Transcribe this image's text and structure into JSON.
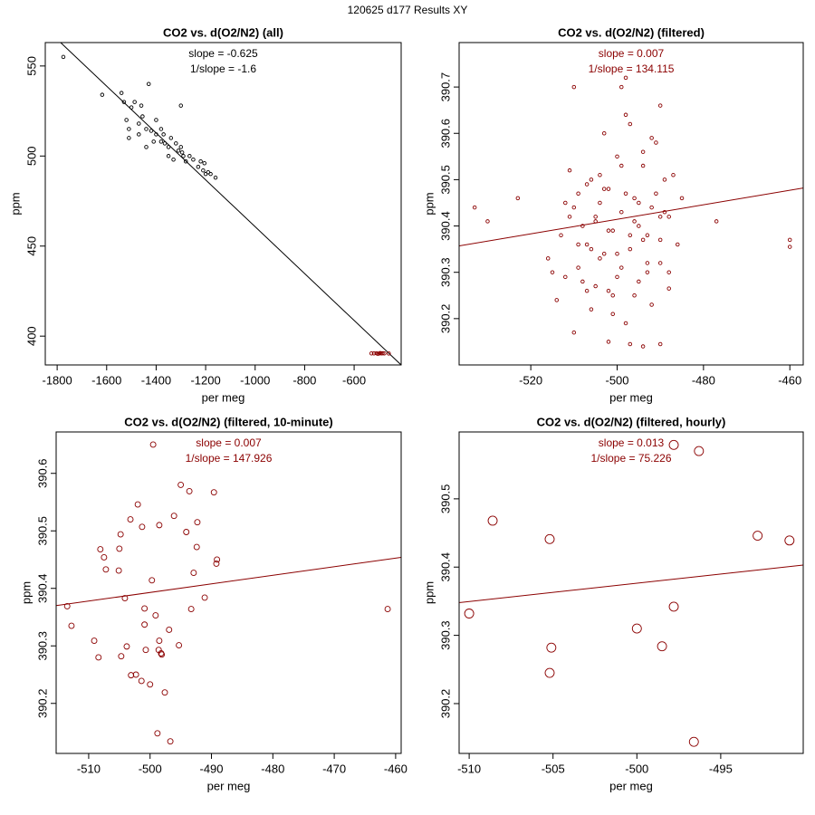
{
  "title": "120625   d177   Results XY",
  "chart_data": [
    {
      "type": "scatter",
      "title": "CO2 vs. d(O2/N2) (all)",
      "xlabel": "per meg",
      "ylabel": "ppm",
      "annotations": [
        "slope = -0.625",
        "1/slope = -1.6"
      ],
      "xlim": [
        -1848,
        -410
      ],
      "ylim": [
        384,
        563
      ],
      "xticks": [
        -1800,
        -1600,
        -1400,
        -1200,
        -1000,
        -800,
        -600
      ],
      "yticks": [
        400,
        450,
        500,
        550
      ],
      "series": [
        {
          "color": "#000000",
          "x": [
            -1775,
            -1618,
            -1540,
            -1530,
            -1500,
            -1487,
            -1430,
            -1520,
            -1510,
            -1455,
            -1470,
            -1400,
            -1380,
            -1370,
            -1420,
            -1440,
            -1410,
            -1380,
            -1365,
            -1350,
            -1340,
            -1320,
            -1310,
            -1300,
            -1290,
            -1300,
            -1330,
            -1280,
            -1265,
            -1250,
            -1230,
            -1210,
            -1200,
            -1190,
            -1180,
            -1160,
            -1205,
            -1220,
            -1440,
            -1510,
            -1470,
            -1350,
            -1295,
            -1460,
            -1400
          ],
          "values": [
            555,
            534,
            535,
            530,
            527,
            530,
            540,
            520,
            515,
            522,
            518,
            520,
            515,
            512,
            514,
            515,
            508,
            508,
            507,
            505,
            510,
            507,
            503,
            505,
            500,
            528,
            498,
            497,
            500,
            498,
            494,
            492,
            490,
            491,
            490,
            488,
            496,
            497,
            505,
            510,
            512,
            500,
            502,
            528,
            512
          ]
        },
        {
          "color": "#8b0000",
          "x": [
            -520,
            -510,
            -500,
            -495,
            -490,
            -485,
            -505,
            -478,
            -460,
            -530
          ],
          "values": [
            390.4,
            390.5,
            390.3,
            390.6,
            390.4,
            390.45,
            390.2,
            390.4,
            390.36,
            390.42
          ]
        }
      ],
      "fit_line": {
        "color": "#000000",
        "x": [
          -1786,
          -410
        ],
        "values": [
          563,
          384
        ]
      }
    },
    {
      "type": "scatter",
      "title": "CO2 vs. d(O2/N2) (filtered)",
      "xlabel": "per meg",
      "ylabel": "ppm",
      "annotations": [
        "slope = 0.007",
        "1/slope = 134.115"
      ],
      "xlim": [
        -536.6,
        -456.9
      ],
      "ylim": [
        390.1,
        390.796
      ],
      "xticks": [
        -520,
        -500,
        -480,
        -460
      ],
      "yticks": [
        390.2,
        390.3,
        390.4,
        390.5,
        390.6,
        390.7
      ],
      "series": [
        {
          "color": "#8b0000",
          "x": [
            -530,
            -533,
            -523,
            -460,
            -460,
            -477,
            -488,
            -498,
            -499,
            -510,
            -490,
            -510,
            -502,
            -497,
            -490,
            -494,
            -515,
            -512,
            -511,
            -509,
            -508,
            -507,
            -506,
            -505,
            -504,
            -503,
            -502,
            -501,
            -500,
            -499,
            -498,
            -497,
            -496,
            -495,
            -494,
            -493,
            -492,
            -491,
            -490,
            -489,
            -487,
            -485,
            -514,
            -513,
            -511,
            -509,
            -507,
            -506,
            -505,
            -504,
            -503,
            -502,
            -501,
            -500,
            -499,
            -498,
            -497,
            -496,
            -495,
            -494,
            -493,
            -492,
            -491,
            -490,
            -489,
            -488,
            -486,
            -516,
            -512,
            -510,
            -508,
            -506,
            -504,
            -502,
            -500,
            -498,
            -496,
            -494,
            -492,
            -490,
            -488,
            -503,
            -501,
            -499,
            -497,
            -495,
            -493,
            -505,
            -507,
            -509
          ],
          "values": [
            390.41,
            390.44,
            390.46,
            390.37,
            390.355,
            390.41,
            390.265,
            390.72,
            390.7,
            390.7,
            390.66,
            390.17,
            390.15,
            390.145,
            390.145,
            390.14,
            390.3,
            390.45,
            390.52,
            390.47,
            390.28,
            390.36,
            390.5,
            390.42,
            390.33,
            390.6,
            390.26,
            390.39,
            390.55,
            390.31,
            390.47,
            390.62,
            390.25,
            390.4,
            390.53,
            390.3,
            390.44,
            390.58,
            390.37,
            390.43,
            390.51,
            390.46,
            390.24,
            390.38,
            390.42,
            390.31,
            390.49,
            390.22,
            390.27,
            390.45,
            390.34,
            390.48,
            390.21,
            390.29,
            390.43,
            390.64,
            390.35,
            390.41,
            390.28,
            390.56,
            390.38,
            390.23,
            390.47,
            390.32,
            390.5,
            390.42,
            390.36,
            390.33,
            390.29,
            390.44,
            390.4,
            390.35,
            390.51,
            390.39,
            390.34,
            390.19,
            390.46,
            390.37,
            390.59,
            390.42,
            390.3,
            390.48,
            390.25,
            390.53,
            390.38,
            390.45,
            390.32,
            390.41,
            390.26,
            390.36
          ]
        }
      ],
      "fit_line": {
        "color": "#8b0000",
        "x": [
          -536.6,
          -456.9
        ],
        "values": [
          390.357,
          390.482
        ]
      }
    },
    {
      "type": "scatter",
      "title": "CO2 vs. d(O2/N2) (filtered, 10-minute)",
      "xlabel": "per meg",
      "ylabel": "ppm",
      "annotations": [
        "slope = 0.007",
        "1/slope = 147.926"
      ],
      "xlim": [
        -515.3,
        -459.1
      ],
      "ylim": [
        390.113,
        390.672
      ],
      "xticks": [
        -510,
        -500,
        -490,
        -480,
        -470,
        -460
      ],
      "yticks": [
        390.2,
        390.3,
        390.4,
        390.5,
        390.6
      ],
      "series": [
        {
          "color": "#8b0000",
          "x": [
            -499.5,
            -495.0,
            -489.6,
            -493.6,
            -496.1,
            -502.0,
            -503.2,
            -498.5,
            -501.3,
            -492.3,
            -494.1,
            -504.8,
            -508.1,
            -505.0,
            -492.4,
            -507.5,
            -492.9,
            -489.1,
            -489.2,
            -505.1,
            -499.7,
            -507.2,
            -513.5,
            -512.8,
            -504.1,
            -500.9,
            -491.1,
            -493.3,
            -500.9,
            -499.1,
            -496.9,
            -498.5,
            -509.1,
            -508.4,
            -503.8,
            -504.7,
            -498.6,
            -500.7,
            -495.3,
            -498.2,
            -498.1,
            -503.1,
            -502.3,
            -501.4,
            -500.0,
            -497.6,
            -461.3,
            -498.8,
            -496.7
          ],
          "values": [
            390.65,
            390.58,
            390.567,
            390.569,
            390.526,
            390.546,
            390.52,
            390.51,
            390.507,
            390.515,
            390.498,
            390.494,
            390.468,
            390.469,
            390.472,
            390.454,
            390.427,
            390.45,
            390.443,
            390.431,
            390.414,
            390.433,
            390.369,
            390.335,
            390.383,
            390.365,
            390.384,
            390.364,
            390.337,
            390.353,
            390.328,
            390.309,
            390.309,
            390.28,
            390.299,
            390.282,
            390.293,
            390.293,
            390.301,
            390.287,
            390.285,
            390.249,
            390.25,
            390.239,
            390.233,
            390.219,
            390.364,
            390.148,
            390.134
          ]
        }
      ],
      "fit_line": {
        "color": "#8b0000",
        "x": [
          -515.3,
          -459.1
        ],
        "values": [
          390.37,
          390.454
        ]
      }
    },
    {
      "type": "scatter",
      "title": "CO2 vs. d(O2/N2) (filtered, hourly)",
      "xlabel": "per meg",
      "ylabel": "ppm",
      "annotations": [
        "slope = 0.013",
        "1/slope = 75.226"
      ],
      "xlim": [
        -510.6,
        -490.08
      ],
      "ylim": [
        390.127,
        390.598
      ],
      "xticks": [
        -510,
        -505,
        -500,
        -495
      ],
      "yticks": [
        390.2,
        390.3,
        390.4,
        390.5
      ],
      "series": [
        {
          "color": "#8b0000",
          "x": [
            -510.0,
            -508.6,
            -505.2,
            -492.8,
            -490.9,
            -497.8,
            -496.3,
            -497.8,
            -500.0,
            -498.5,
            -505.1,
            -505.2,
            -496.6
          ],
          "values": [
            390.332,
            390.468,
            390.441,
            390.446,
            390.439,
            390.579,
            390.57,
            390.342,
            390.31,
            390.284,
            390.282,
            390.245,
            390.144
          ]
        }
      ],
      "fit_line": {
        "color": "#8b0000",
        "x": [
          -510.6,
          -490.08
        ],
        "values": [
          390.348,
          390.403
        ]
      }
    }
  ]
}
